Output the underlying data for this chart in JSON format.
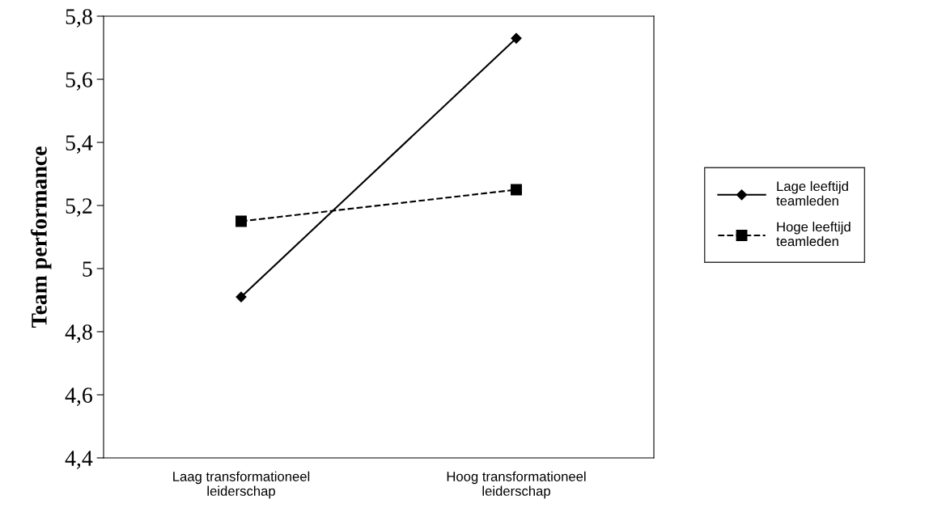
{
  "chart_data": {
    "type": "line",
    "ylabel": "Team performance",
    "categories": [
      "Laag transformationeel\nleiderschap",
      "Hoog transformationeel\nleiderschap"
    ],
    "series": [
      {
        "name": "Lage leeftijd\nteamleden",
        "color": "#000000",
        "values": [
          4.91,
          5.73
        ],
        "marker": "diamond",
        "line_style": "solid"
      },
      {
        "name": "Hoge leeftijd\nteamleden",
        "color": "#000000",
        "values": [
          5.15,
          5.25
        ],
        "marker": "square",
        "line_style": "dashed"
      }
    ],
    "ylim": [
      4.4,
      5.8
    ],
    "yticks": [
      {
        "value": 4.4,
        "label": "4,4"
      },
      {
        "value": 4.6,
        "label": "4,6"
      },
      {
        "value": 4.8,
        "label": "4,8"
      },
      5,
      {
        "value": 5.2,
        "label": "5,2"
      },
      {
        "value": 5.4,
        "label": "5,4"
      },
      {
        "value": 5.6,
        "label": "5,6"
      },
      {
        "value": 5.8,
        "label": "5,8"
      }
    ],
    "grid": false,
    "legend": "right"
  }
}
